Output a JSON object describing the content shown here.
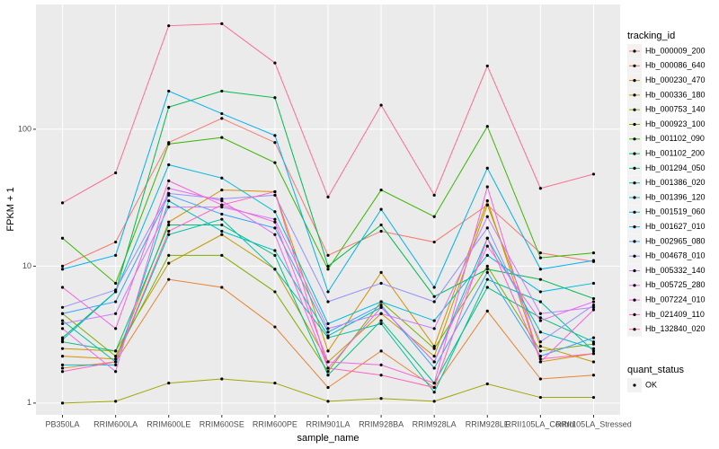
{
  "chart_data": {
    "type": "line",
    "x_label": "sample_name",
    "y_label": "FPKM + 1",
    "log_y": true,
    "grid": true,
    "ylim": [
      0.82,
      815
    ],
    "yticks": [
      1,
      10,
      100
    ],
    "categories": [
      "PB350LA",
      "RRIM600LA",
      "RRIM600LE",
      "RRIM600SE",
      "RRIM600PE",
      "RRIM901LA",
      "RRIM928BA",
      "RRIM928LA",
      "RRIM928LE",
      "RRII105LA_Control",
      "RRII105LA_Stressed"
    ],
    "legend_title": "tracking_id",
    "point_legend": {
      "title": "quant_status",
      "labels": [
        "OK"
      ]
    },
    "series": [
      {
        "name": "Hb_000009_200",
        "color": "#F8766D",
        "values": [
          10,
          15,
          80,
          120,
          80,
          12,
          18,
          15,
          28,
          12.5,
          10.8
        ]
      },
      {
        "name": "Hb_000086_640",
        "color": "#EA8331",
        "values": [
          1.8,
          2.0,
          8,
          7,
          3.6,
          1.3,
          2.4,
          1.3,
          4.7,
          1.5,
          1.6
        ]
      },
      {
        "name": "Hb_000230_470",
        "color": "#D89000",
        "values": [
          2.2,
          2.1,
          21,
          36,
          35,
          2.4,
          9,
          2.6,
          30,
          2.0,
          2.3
        ]
      },
      {
        "name": "Hb_000336_180",
        "color": "#C09B00",
        "values": [
          2.5,
          2.4,
          10.5,
          17,
          9.5,
          2.0,
          4.5,
          2.2,
          28,
          2.6,
          2.0
        ]
      },
      {
        "name": "Hb_000753_140",
        "color": "#A3A500",
        "values": [
          1.0,
          1.03,
          1.4,
          1.5,
          1.4,
          1.03,
          1.08,
          1.03,
          1.38,
          1.1,
          1.1
        ]
      },
      {
        "name": "Hb_000923_100",
        "color": "#7CAE00",
        "values": [
          4.5,
          2.2,
          12,
          12,
          6.5,
          1.7,
          5.5,
          2.5,
          10,
          2.4,
          2.7
        ]
      },
      {
        "name": "Hb_001102_090",
        "color": "#39B600",
        "values": [
          16,
          7.5,
          78,
          87,
          57,
          9.5,
          36,
          23,
          105,
          11.5,
          12.5
        ]
      },
      {
        "name": "Hb_001102_200",
        "color": "#00BB4E",
        "values": [
          3.0,
          6.5,
          145,
          190,
          170,
          10,
          20,
          6,
          9.5,
          8,
          5.8
        ]
      },
      {
        "name": "Hb_001294_050",
        "color": "#00BF7D",
        "values": [
          2.8,
          2.4,
          20,
          20,
          12,
          1.6,
          4,
          1.4,
          7,
          4.2,
          2.8
        ]
      },
      {
        "name": "Hb_001386_020",
        "color": "#00C1A3",
        "values": [
          4.0,
          2.0,
          17,
          22,
          9.5,
          3.0,
          3.8,
          1.2,
          8,
          5.5,
          2.4
        ]
      },
      {
        "name": "Hb_001396_120",
        "color": "#00BFC4",
        "values": [
          1.9,
          1.9,
          30,
          18,
          13,
          3.1,
          5.0,
          2.0,
          16,
          3.3,
          2.5
        ]
      },
      {
        "name": "Hb_001519_060",
        "color": "#00BAE0",
        "values": [
          2.9,
          6.5,
          55,
          44,
          25,
          3.8,
          5.5,
          4.0,
          12,
          6.5,
          7.5
        ]
      },
      {
        "name": "Hb_001627_010",
        "color": "#00B0F6",
        "values": [
          9.5,
          12,
          190,
          130,
          90,
          6.5,
          26,
          7,
          52,
          9.5,
          11
        ]
      },
      {
        "name": "Hb_002965_080",
        "color": "#35A2FF",
        "values": [
          4.5,
          5.5,
          33,
          24,
          19,
          3.3,
          5.2,
          1.8,
          9,
          2.2,
          3.0
        ]
      },
      {
        "name": "Hb_004678_010",
        "color": "#9590FF",
        "values": [
          5.0,
          6.7,
          34,
          31,
          33,
          5.5,
          7.5,
          5.5,
          19,
          2.8,
          5.2
        ]
      },
      {
        "name": "Hb_005332_140",
        "color": "#C77CFF",
        "values": [
          3.8,
          4.5,
          27,
          27,
          22,
          3.5,
          4.5,
          3.5,
          23,
          4.5,
          5.0
        ]
      },
      {
        "name": "Hb_005725_280",
        "color": "#E76BF3",
        "values": [
          3.5,
          1.7,
          37,
          30,
          17,
          1.8,
          5.0,
          2.0,
          14,
          4.0,
          5.5
        ]
      },
      {
        "name": "Hb_007224_010",
        "color": "#FA62DB",
        "values": [
          7,
          3.5,
          42,
          28,
          21,
          2.0,
          1.9,
          1.4,
          38,
          2.0,
          4.8
        ]
      },
      {
        "name": "Hb_021409_110",
        "color": "#FF62BC",
        "values": [
          1.7,
          2.0,
          18,
          28,
          35,
          1.8,
          1.6,
          1.3,
          16,
          2.1,
          2.3
        ]
      },
      {
        "name": "Hb_132840_020",
        "color": "#FF6C91",
        "values": [
          29,
          48,
          570,
          590,
          305,
          32,
          150,
          33,
          290,
          37,
          47
        ]
      }
    ]
  }
}
